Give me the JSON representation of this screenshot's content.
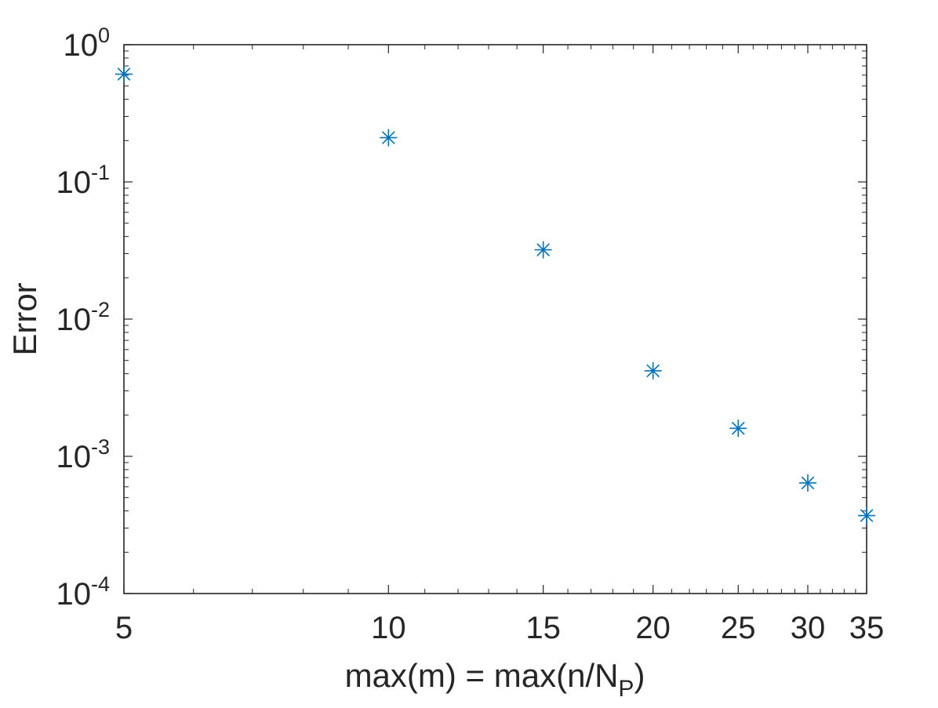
{
  "chart_data": {
    "type": "scatter",
    "x_scale": "log",
    "y_scale": "log",
    "xlim": [
      5,
      35
    ],
    "ylim": [
      0.0001,
      1
    ],
    "grid": false,
    "marker": "asterisk",
    "colors": {
      "marker": "#0072BD",
      "axis": "#262626"
    },
    "x_ticks": [
      5,
      10,
      15,
      20,
      25,
      30,
      35
    ],
    "x_tick_labels": [
      "5",
      "10",
      "15",
      "20",
      "25",
      "30",
      "35"
    ],
    "y_ticks": [
      {
        "value": 1,
        "base": "10",
        "exp": "0"
      },
      {
        "value": 0.1,
        "base": "10",
        "exp": "-1"
      },
      {
        "value": 0.01,
        "base": "10",
        "exp": "-2"
      },
      {
        "value": 0.001,
        "base": "10",
        "exp": "-3"
      },
      {
        "value": 0.0001,
        "base": "10",
        "exp": "-4"
      }
    ],
    "xlabel": {
      "main": "max(m) = max(n/N",
      "sub": "P",
      "tail": ")"
    },
    "ylabel": "Error",
    "series": [
      {
        "x": [
          5,
          10,
          15,
          20,
          25,
          30,
          35
        ],
        "y": [
          0.61,
          0.21,
          0.032,
          0.0042,
          0.0016,
          0.00064,
          0.00037
        ]
      }
    ]
  }
}
